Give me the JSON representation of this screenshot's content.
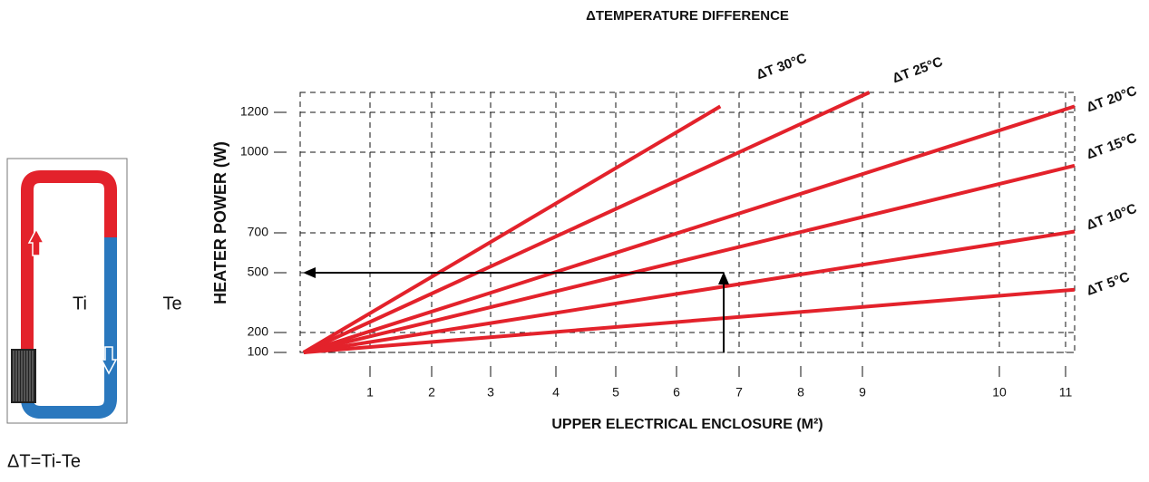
{
  "diagram": {
    "inside_label": "Ti",
    "outside_label": "Te",
    "formula": "ΔT=Ti-Te"
  },
  "chart_data": {
    "type": "line",
    "title": "ΔTEMPERATURE DIFFERENCE",
    "x_label": "UPPER ELECTRICAL ENCLOSURE (M²)",
    "y_label": "HEATER POWER (W)",
    "xlim": [
      0,
      11.1
    ],
    "xticks": [
      1,
      2,
      3,
      4,
      5,
      6,
      7,
      8,
      9,
      10,
      11
    ],
    "ylim": [
      100,
      1300
    ],
    "yticks": [
      100,
      200,
      500,
      700,
      1000,
      1200
    ],
    "grid": true,
    "series": [
      {
        "name": "ΔT 30°C",
        "color": "#e3222b",
        "x": [
          0.05,
          6.7
        ],
        "values": [
          100,
          1230
        ]
      },
      {
        "name": "ΔT 25°C",
        "color": "#e3222b",
        "x": [
          0.05,
          9.05
        ],
        "values": [
          100,
          1300
        ]
      },
      {
        "name": "ΔT 20°C",
        "color": "#e3222b",
        "x": [
          0.05,
          11.1
        ],
        "values": [
          100,
          1230
        ]
      },
      {
        "name": "ΔT 15°C",
        "color": "#e3222b",
        "x": [
          0.05,
          11.1
        ],
        "values": [
          100,
          950
        ]
      },
      {
        "name": "ΔT 10°C",
        "color": "#e3222b",
        "x": [
          0.05,
          11.1
        ],
        "values": [
          100,
          705
        ]
      },
      {
        "name": "ΔT 5°C",
        "color": "#e3222b",
        "x": [
          0.05,
          11.1
        ],
        "values": [
          100,
          415
        ]
      }
    ]
  }
}
